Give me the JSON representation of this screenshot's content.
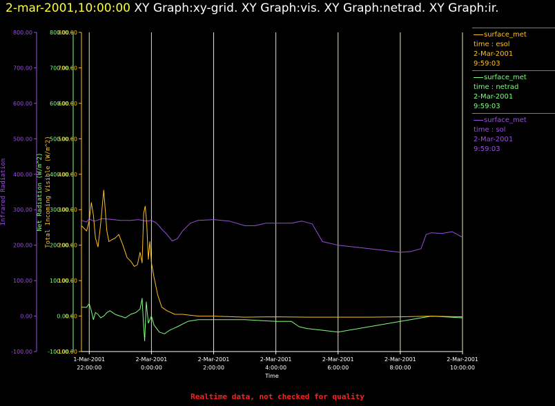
{
  "header": {
    "timestamp": "2-mar-2001,10:00:00",
    "graphs": "XY Graph:xy-grid.  XY Graph:vis.  XY Graph:netrad.  XY Graph:ir."
  },
  "legend": [
    {
      "name": "surface_met",
      "time": "time : esol",
      "date": "2-Mar-2001",
      "clock": "9:59:03",
      "color": "#ffc020"
    },
    {
      "name": "surface_met",
      "time": "time : netrad",
      "date": "2-Mar-2001",
      "clock": "9:59:03",
      "color": "#80ff80"
    },
    {
      "name": "surface_met",
      "time": "time : sol",
      "date": "2-Mar-2001",
      "clock": "9:59:03",
      "color": "#9a4fe0"
    }
  ],
  "footer": "Realtime data, not checked for quality",
  "chart_data": {
    "type": "line",
    "xlabel": "Time",
    "xlim": [
      "1-Mar-2001 21:45:00",
      "2-Mar-2001 10:00:00"
    ],
    "x_ticks": [
      {
        "date": "1-Mar-2001",
        "time": "22:00:00"
      },
      {
        "date": "2-Mar-2001",
        "time": "0:00:00"
      },
      {
        "date": "2-Mar-2001",
        "time": "2:00:00"
      },
      {
        "date": "2-Mar-2001",
        "time": "4:00:00"
      },
      {
        "date": "2-Mar-2001",
        "time": "6:00:00"
      },
      {
        "date": "2-Mar-2001",
        "time": "8:00:00"
      },
      {
        "date": "2-Mar-2001",
        "time": "10:00:00"
      }
    ],
    "grid": "vertical",
    "y_ticks": [
      "800.00",
      "700.00",
      "600.00",
      "500.00",
      "400.00",
      "300.00",
      "200.00",
      "100.00",
      "0.00",
      "-100.00"
    ],
    "axes": [
      {
        "label": "Infrared Radiation",
        "ylim": [
          -100,
          800
        ],
        "color": "#9a4fe0"
      },
      {
        "label": "Net Radiation (W/m^2)",
        "ylim": [
          -100,
          800
        ],
        "color": "#80ff80"
      },
      {
        "label": "Total Incoming Visible (W/m^2)",
        "ylim": [
          -100,
          800
        ],
        "color": "#ffc020"
      }
    ],
    "series": [
      {
        "name": "time : esol",
        "color": "#ffc020",
        "x": [
          "1-Mar-2001 21:45:00",
          "1-Mar-2001 21:55:00",
          "1-Mar-2001 22:00:00",
          "1-Mar-2001 22:04:00",
          "1-Mar-2001 22:08:00",
          "1-Mar-2001 22:12:00",
          "1-Mar-2001 22:17:00",
          "1-Mar-2001 22:22:00",
          "1-Mar-2001 22:28:00",
          "1-Mar-2001 22:34:00",
          "1-Mar-2001 22:38:00",
          "1-Mar-2001 22:43:00",
          "1-Mar-2001 22:50:00",
          "1-Mar-2001 22:57:00",
          "1-Mar-2001 23:05:00",
          "1-Mar-2001 23:13:00",
          "1-Mar-2001 23:20:00",
          "1-Mar-2001 23:27:00",
          "1-Mar-2001 23:33:00",
          "1-Mar-2001 23:38:00",
          "1-Mar-2001 23:42:00",
          "1-Mar-2001 23:45:00",
          "1-Mar-2001 23:48:00",
          "1-Mar-2001 23:51:00",
          "1-Mar-2001 23:54:00",
          "1-Mar-2001 23:57:00",
          "2-Mar-2001 0:00:00",
          "2-Mar-2001 0:05:00",
          "2-Mar-2001 0:12:00",
          "2-Mar-2001 0:20:00",
          "2-Mar-2001 0:30:00",
          "2-Mar-2001 0:45:00",
          "2-Mar-2001 1:00:00",
          "2-Mar-2001 1:30:00",
          "2-Mar-2001 2:00:00",
          "2-Mar-2001 3:00:00",
          "2-Mar-2001 4:00:00",
          "2-Mar-2001 5:00:00",
          "2-Mar-2001 6:00:00",
          "2-Mar-2001 7:00:00",
          "2-Mar-2001 8:00:00",
          "2-Mar-2001 9:00:00",
          "2-Mar-2001 10:00:00"
        ],
        "y": [
          255,
          240,
          270,
          320,
          285,
          220,
          195,
          260,
          355,
          240,
          210,
          215,
          220,
          230,
          200,
          165,
          155,
          140,
          145,
          180,
          150,
          290,
          310,
          260,
          160,
          210,
          150,
          110,
          60,
          25,
          15,
          5,
          5,
          0,
          0,
          -3,
          -2,
          -3,
          -3,
          -3,
          -2,
          0,
          -2
        ]
      },
      {
        "name": "time : netrad",
        "color": "#80ff80",
        "x": [
          "1-Mar-2001 21:45:00",
          "1-Mar-2001 21:55:00",
          "1-Mar-2001 22:00:00",
          "1-Mar-2001 22:04:00",
          "1-Mar-2001 22:08:00",
          "1-Mar-2001 22:12:00",
          "1-Mar-2001 22:17:00",
          "1-Mar-2001 22:22:00",
          "1-Mar-2001 22:28:00",
          "1-Mar-2001 22:34:00",
          "1-Mar-2001 22:40:00",
          "1-Mar-2001 22:50:00",
          "1-Mar-2001 23:00:00",
          "1-Mar-2001 23:10:00",
          "1-Mar-2001 23:20:00",
          "1-Mar-2001 23:30:00",
          "1-Mar-2001 23:38:00",
          "1-Mar-2001 23:42:00",
          "1-Mar-2001 23:45:00",
          "1-Mar-2001 23:47:00",
          "1-Mar-2001 23:50:00",
          "1-Mar-2001 23:54:00",
          "1-Mar-2001 23:57:00",
          "2-Mar-2001 0:00:00",
          "2-Mar-2001 0:05:00",
          "2-Mar-2001 0:15:00",
          "2-Mar-2001 0:25:00",
          "2-Mar-2001 0:35:00",
          "2-Mar-2001 0:50:00",
          "2-Mar-2001 1:10:00",
          "2-Mar-2001 1:30:00",
          "2-Mar-2001 2:00:00",
          "2-Mar-2001 3:00:00",
          "2-Mar-2001 4:00:00",
          "2-Mar-2001 4:30:00",
          "2-Mar-2001 4:45:00",
          "2-Mar-2001 5:00:00",
          "2-Mar-2001 5:30:00",
          "2-Mar-2001 6:00:00",
          "2-Mar-2001 7:00:00",
          "2-Mar-2001 8:00:00",
          "2-Mar-2001 9:00:00",
          "2-Mar-2001 10:00:00"
        ],
        "y": [
          25,
          25,
          35,
          15,
          -10,
          10,
          5,
          -5,
          0,
          10,
          15,
          5,
          0,
          -5,
          5,
          10,
          20,
          50,
          -30,
          -70,
          40,
          -20,
          -10,
          0,
          -25,
          -45,
          -50,
          -40,
          -30,
          -15,
          -10,
          -10,
          -10,
          -15,
          -15,
          -30,
          -35,
          -40,
          -45,
          -30,
          -15,
          0,
          -5
        ]
      },
      {
        "name": "time : sol",
        "color": "#9a4fe0",
        "x": [
          "1-Mar-2001 21:45:00",
          "1-Mar-2001 21:55:00",
          "1-Mar-2001 22:00:00",
          "1-Mar-2001 22:05:00",
          "1-Mar-2001 22:10:00",
          "1-Mar-2001 22:15:00",
          "1-Mar-2001 22:25:00",
          "1-Mar-2001 22:40:00",
          "1-Mar-2001 23:00:00",
          "1-Mar-2001 23:20:00",
          "1-Mar-2001 23:35:00",
          "1-Mar-2001 23:50:00",
          "2-Mar-2001 0:00:00",
          "2-Mar-2001 0:10:00",
          "2-Mar-2001 0:20:00",
          "2-Mar-2001 0:30:00",
          "2-Mar-2001 0:40:00",
          "2-Mar-2001 0:50:00",
          "2-Mar-2001 1:00:00",
          "2-Mar-2001 1:15:00",
          "2-Mar-2001 1:30:00",
          "2-Mar-2001 2:00:00",
          "2-Mar-2001 2:30:00",
          "2-Mar-2001 3:00:00",
          "2-Mar-2001 3:20:00",
          "2-Mar-2001 3:40:00",
          "2-Mar-2001 4:00:00",
          "2-Mar-2001 4:30:00",
          "2-Mar-2001 4:50:00",
          "2-Mar-2001 5:10:00",
          "2-Mar-2001 5:30:00",
          "2-Mar-2001 6:00:00",
          "2-Mar-2001 6:30:00",
          "2-Mar-2001 7:00:00",
          "2-Mar-2001 7:30:00",
          "2-Mar-2001 8:00:00",
          "2-Mar-2001 8:20:00",
          "2-Mar-2001 8:40:00",
          "2-Mar-2001 8:50:00",
          "2-Mar-2001 9:00:00",
          "2-Mar-2001 9:20:00",
          "2-Mar-2001 9:40:00",
          "2-Mar-2001 10:00:00"
        ],
        "y": [
          270,
          265,
          275,
          270,
          268,
          270,
          275,
          273,
          270,
          270,
          272,
          268,
          270,
          262,
          245,
          230,
          212,
          218,
          240,
          262,
          270,
          272,
          268,
          255,
          255,
          262,
          262,
          262,
          268,
          260,
          210,
          200,
          195,
          190,
          185,
          180,
          182,
          190,
          230,
          235,
          233,
          238,
          222
        ]
      }
    ]
  }
}
